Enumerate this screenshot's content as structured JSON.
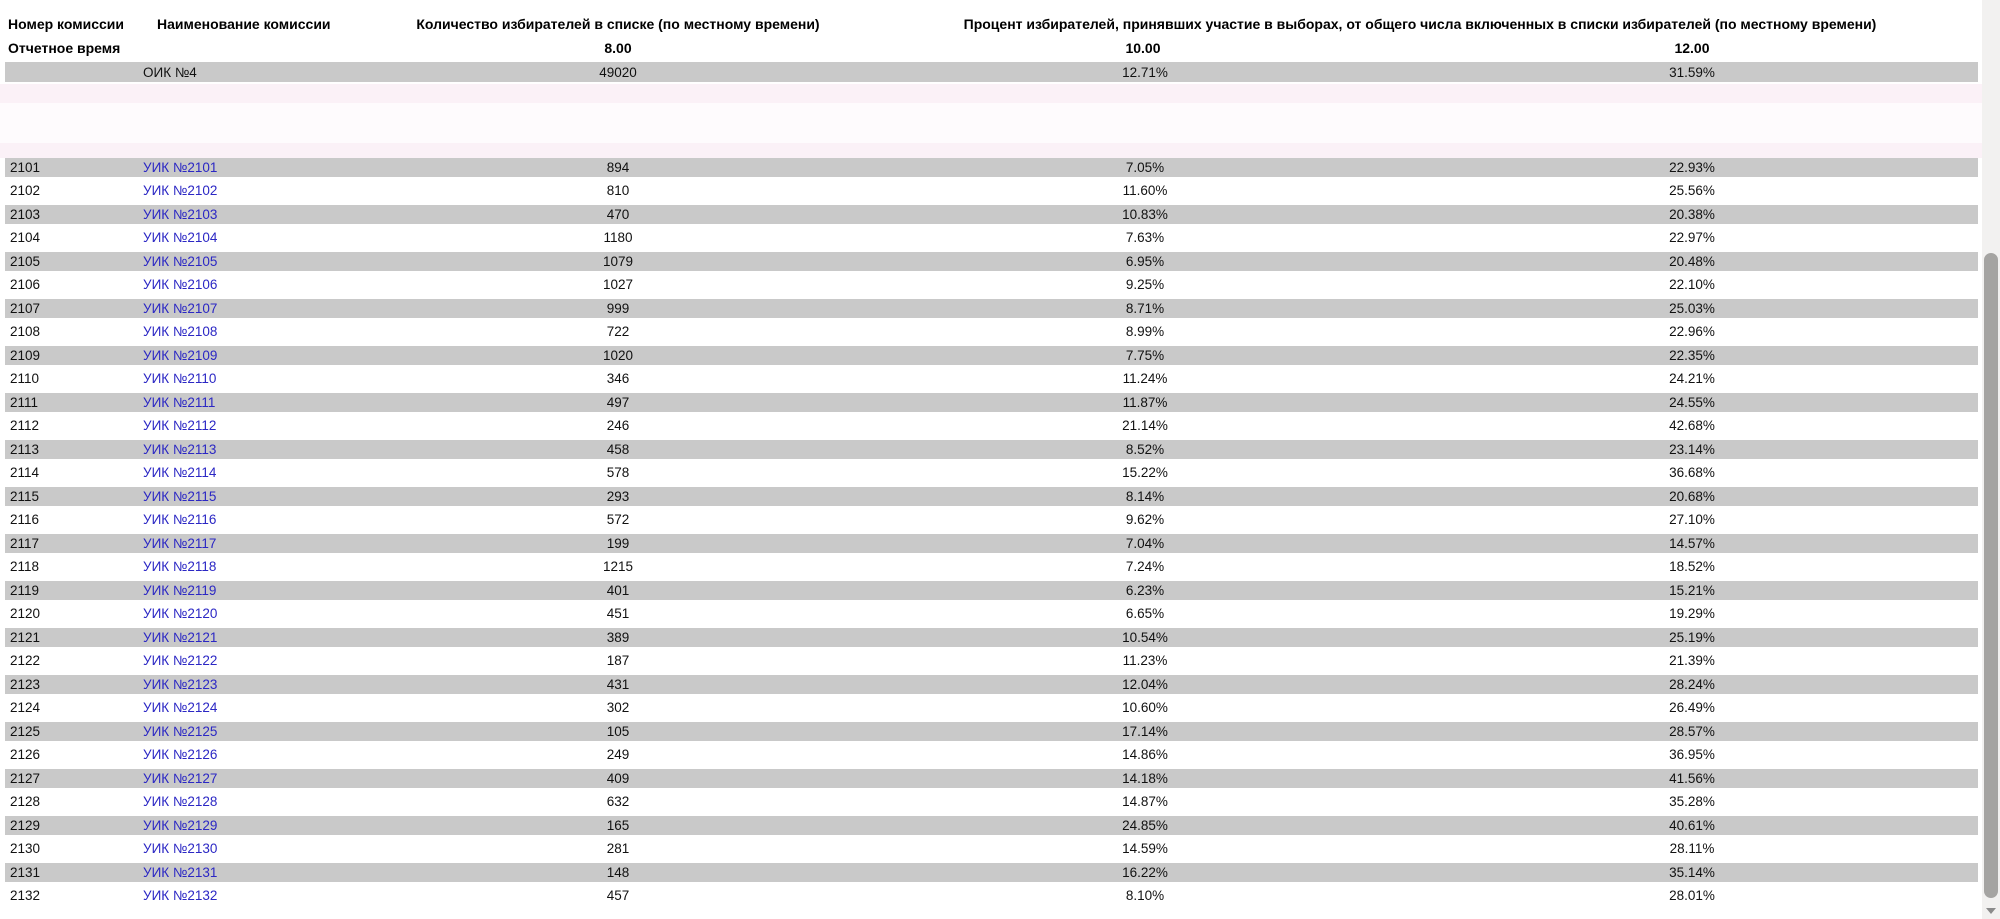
{
  "header": {
    "col_commission_number": "Номер комиссии",
    "col_commission_name": "Наименование комиссии",
    "col_voters_in_list": "Количество избирателей в списке (по местному времени)",
    "col_turnout_percent": "Процент избирателей, принявших участие в выборах, от общего числа включенных в списки избирателей (по местному времени)",
    "report_time_label": "Отчетное время",
    "times": [
      "8.00",
      "10.00",
      "12.00"
    ]
  },
  "summary_row": {
    "number": "",
    "name": "ОИК №4",
    "voters": "49020",
    "pct_10": "12.71%",
    "pct_12": "31.59%"
  },
  "rows": [
    {
      "number": "2101",
      "name": "УИК №2101",
      "voters": "894",
      "pct_10": "7.05%",
      "pct_12": "22.93%"
    },
    {
      "number": "2102",
      "name": "УИК №2102",
      "voters": "810",
      "pct_10": "11.60%",
      "pct_12": "25.56%"
    },
    {
      "number": "2103",
      "name": "УИК №2103",
      "voters": "470",
      "pct_10": "10.83%",
      "pct_12": "20.38%"
    },
    {
      "number": "2104",
      "name": "УИК №2104",
      "voters": "1180",
      "pct_10": "7.63%",
      "pct_12": "22.97%"
    },
    {
      "number": "2105",
      "name": "УИК №2105",
      "voters": "1079",
      "pct_10": "6.95%",
      "pct_12": "20.48%"
    },
    {
      "number": "2106",
      "name": "УИК №2106",
      "voters": "1027",
      "pct_10": "9.25%",
      "pct_12": "22.10%"
    },
    {
      "number": "2107",
      "name": "УИК №2107",
      "voters": "999",
      "pct_10": "8.71%",
      "pct_12": "25.03%"
    },
    {
      "number": "2108",
      "name": "УИК №2108",
      "voters": "722",
      "pct_10": "8.99%",
      "pct_12": "22.96%"
    },
    {
      "number": "2109",
      "name": "УИК №2109",
      "voters": "1020",
      "pct_10": "7.75%",
      "pct_12": "22.35%"
    },
    {
      "number": "2110",
      "name": "УИК №2110",
      "voters": "346",
      "pct_10": "11.24%",
      "pct_12": "24.21%"
    },
    {
      "number": "2111",
      "name": "УИК №2111",
      "voters": "497",
      "pct_10": "11.87%",
      "pct_12": "24.55%"
    },
    {
      "number": "2112",
      "name": "УИК №2112",
      "voters": "246",
      "pct_10": "21.14%",
      "pct_12": "42.68%"
    },
    {
      "number": "2113",
      "name": "УИК №2113",
      "voters": "458",
      "pct_10": "8.52%",
      "pct_12": "23.14%"
    },
    {
      "number": "2114",
      "name": "УИК №2114",
      "voters": "578",
      "pct_10": "15.22%",
      "pct_12": "36.68%"
    },
    {
      "number": "2115",
      "name": "УИК №2115",
      "voters": "293",
      "pct_10": "8.14%",
      "pct_12": "20.68%"
    },
    {
      "number": "2116",
      "name": "УИК №2116",
      "voters": "572",
      "pct_10": "9.62%",
      "pct_12": "27.10%"
    },
    {
      "number": "2117",
      "name": "УИК №2117",
      "voters": "199",
      "pct_10": "7.04%",
      "pct_12": "14.57%"
    },
    {
      "number": "2118",
      "name": "УИК №2118",
      "voters": "1215",
      "pct_10": "7.24%",
      "pct_12": "18.52%"
    },
    {
      "number": "2119",
      "name": "УИК №2119",
      "voters": "401",
      "pct_10": "6.23%",
      "pct_12": "15.21%"
    },
    {
      "number": "2120",
      "name": "УИК №2120",
      "voters": "451",
      "pct_10": "6.65%",
      "pct_12": "19.29%"
    },
    {
      "number": "2121",
      "name": "УИК №2121",
      "voters": "389",
      "pct_10": "10.54%",
      "pct_12": "25.19%"
    },
    {
      "number": "2122",
      "name": "УИК №2122",
      "voters": "187",
      "pct_10": "11.23%",
      "pct_12": "21.39%"
    },
    {
      "number": "2123",
      "name": "УИК №2123",
      "voters": "431",
      "pct_10": "12.04%",
      "pct_12": "28.24%"
    },
    {
      "number": "2124",
      "name": "УИК №2124",
      "voters": "302",
      "pct_10": "10.60%",
      "pct_12": "26.49%"
    },
    {
      "number": "2125",
      "name": "УИК №2125",
      "voters": "105",
      "pct_10": "17.14%",
      "pct_12": "28.57%"
    },
    {
      "number": "2126",
      "name": "УИК №2126",
      "voters": "249",
      "pct_10": "14.86%",
      "pct_12": "36.95%"
    },
    {
      "number": "2127",
      "name": "УИК №2127",
      "voters": "409",
      "pct_10": "14.18%",
      "pct_12": "41.56%"
    },
    {
      "number": "2128",
      "name": "УИК №2128",
      "voters": "632",
      "pct_10": "14.87%",
      "pct_12": "35.28%"
    },
    {
      "number": "2129",
      "name": "УИК №2129",
      "voters": "165",
      "pct_10": "24.85%",
      "pct_12": "40.61%"
    },
    {
      "number": "2130",
      "name": "УИК №2130",
      "voters": "281",
      "pct_10": "14.59%",
      "pct_12": "28.11%"
    },
    {
      "number": "2131",
      "name": "УИК №2131",
      "voters": "148",
      "pct_10": "16.22%",
      "pct_12": "35.14%"
    },
    {
      "number": "2132",
      "name": "УИК №2132",
      "voters": "457",
      "pct_10": "8.10%",
      "pct_12": "28.01%"
    }
  ],
  "colors": {
    "row_gray": "#c9c9c9",
    "link_blue": "#2b27c4",
    "separator_pink": "#fbf1f7",
    "scrollbar_thumb": "#a5a4a2"
  }
}
